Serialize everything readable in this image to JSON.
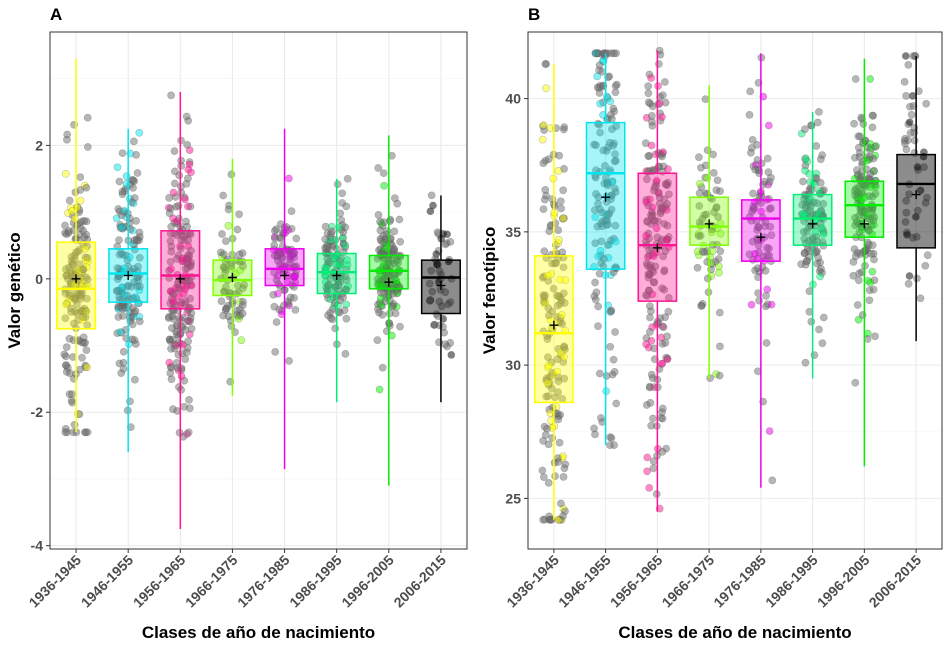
{
  "chart_data": [
    {
      "type": "box",
      "panel_label": "A",
      "xlabel": "Clases de año de nacimiento",
      "ylabel": "Valor genético",
      "ylim": [
        -4.05,
        3.7
      ],
      "yticks": [
        -4,
        -2,
        0,
        2
      ],
      "ytick_labels": [
        "-4",
        "-2",
        "0",
        "2"
      ],
      "grid": true,
      "categories": [
        "1936-1945",
        "1946-1955",
        "1956-1965",
        "1966-1975",
        "1976-1985",
        "1986-1995",
        "1996-2005",
        "2006-2015"
      ],
      "colors": [
        "#ffff00",
        "#00e5ee",
        "#ff1493",
        "#7fff00",
        "#ee00ee",
        "#00ee76",
        "#00ee00",
        "#000000"
      ],
      "boxes": [
        {
          "q1": -0.75,
          "median": -0.15,
          "q3": 0.55,
          "mean": 0.0,
          "whisker_low": -2.3,
          "whisker_high": 3.3
        },
        {
          "q1": -0.35,
          "median": 0.08,
          "q3": 0.45,
          "mean": 0.05,
          "whisker_low": -2.6,
          "whisker_high": 2.25
        },
        {
          "q1": -0.45,
          "median": 0.05,
          "q3": 0.72,
          "mean": 0.0,
          "whisker_low": -3.75,
          "whisker_high": 2.8
        },
        {
          "q1": -0.25,
          "median": -0.02,
          "q3": 0.28,
          "mean": 0.02,
          "whisker_low": -1.75,
          "whisker_high": 1.8
        },
        {
          "q1": -0.1,
          "median": 0.15,
          "q3": 0.45,
          "mean": 0.05,
          "whisker_low": -2.85,
          "whisker_high": 2.25
        },
        {
          "q1": -0.22,
          "median": 0.1,
          "q3": 0.38,
          "mean": 0.05,
          "whisker_low": -1.85,
          "whisker_high": 1.5
        },
        {
          "q1": -0.15,
          "median": 0.12,
          "q3": 0.35,
          "mean": -0.05,
          "whisker_low": -3.1,
          "whisker_high": 2.15
        },
        {
          "q1": -0.52,
          "median": 0.02,
          "q3": 0.28,
          "mean": -0.1,
          "whisker_low": -1.85,
          "whisker_high": 1.25
        }
      ]
    },
    {
      "type": "box",
      "panel_label": "B",
      "xlabel": "Clases de año de nacimiento",
      "ylabel": "Valor fenotípico",
      "ylim": [
        23.1,
        42.5
      ],
      "yticks": [
        25,
        30,
        35,
        40
      ],
      "ytick_labels": [
        "25",
        "30",
        "35",
        "40"
      ],
      "grid": true,
      "categories": [
        "1936-1945",
        "1946-1955",
        "1956-1965",
        "1966-1975",
        "1976-1985",
        "1986-1995",
        "1996-2005",
        "2006-2015"
      ],
      "colors": [
        "#ffff00",
        "#00e5ee",
        "#ff1493",
        "#7fff00",
        "#ee00ee",
        "#00ee76",
        "#00ee00",
        "#000000"
      ],
      "boxes": [
        {
          "q1": 28.6,
          "median": 31.2,
          "q3": 34.1,
          "mean": 31.5,
          "whisker_low": 24.2,
          "whisker_high": 41.3
        },
        {
          "q1": 33.6,
          "median": 37.2,
          "q3": 39.1,
          "mean": 36.3,
          "whisker_low": 27.0,
          "whisker_high": 41.7
        },
        {
          "q1": 32.4,
          "median": 34.5,
          "q3": 37.2,
          "mean": 34.4,
          "whisker_low": 24.5,
          "whisker_high": 41.8
        },
        {
          "q1": 34.5,
          "median": 35.2,
          "q3": 36.3,
          "mean": 35.3,
          "whisker_low": 29.5,
          "whisker_high": 40.5
        },
        {
          "q1": 33.9,
          "median": 35.5,
          "q3": 36.2,
          "mean": 34.8,
          "whisker_low": 25.4,
          "whisker_high": 41.7
        },
        {
          "q1": 34.5,
          "median": 35.5,
          "q3": 36.4,
          "mean": 35.3,
          "whisker_low": 29.5,
          "whisker_high": 39.5
        },
        {
          "q1": 34.8,
          "median": 36.0,
          "q3": 36.9,
          "mean": 35.3,
          "whisker_low": 26.2,
          "whisker_high": 41.5
        },
        {
          "q1": 34.4,
          "median": 36.8,
          "q3": 37.9,
          "mean": 36.4,
          "whisker_low": 30.9,
          "whisker_high": 41.6
        }
      ]
    }
  ]
}
